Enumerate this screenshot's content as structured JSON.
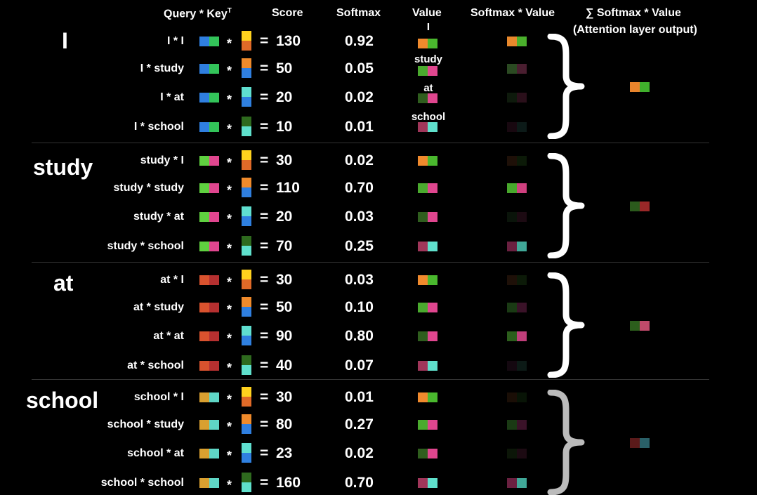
{
  "headers": {
    "query_key": "Query * Key",
    "query_key_sup": "T",
    "score": "Score",
    "softmax": "Softmax",
    "value": "Value",
    "softmax_value": "Softmax * Value",
    "sum_symbol": "∑",
    "sum_label": "Softmax * Value",
    "sum_sublabel": "(Attention layer output)"
  },
  "symbols": {
    "times": "*",
    "equals": "="
  },
  "value_labels": [
    "I",
    "study",
    "at",
    "school"
  ],
  "groups": [
    {
      "word": "I",
      "rows": [
        {
          "pair": "I * I",
          "score": "130",
          "softmax": "0.92"
        },
        {
          "pair": "I * study",
          "score": "50",
          "softmax": "0.05"
        },
        {
          "pair": "I * at",
          "score": "20",
          "softmax": "0.02"
        },
        {
          "pair": "I * school",
          "score": "10",
          "softmax": "0.01"
        }
      ]
    },
    {
      "word": "study",
      "rows": [
        {
          "pair": "study * I",
          "score": "30",
          "softmax": "0.02"
        },
        {
          "pair": "study * study",
          "score": "110",
          "softmax": "0.70"
        },
        {
          "pair": "study * at",
          "score": "20",
          "softmax": "0.03"
        },
        {
          "pair": "study * school",
          "score": "70",
          "softmax": "0.25"
        }
      ]
    },
    {
      "word": "at",
      "rows": [
        {
          "pair": "at * I",
          "score": "30",
          "softmax": "0.03"
        },
        {
          "pair": "at * study",
          "score": "50",
          "softmax": "0.10"
        },
        {
          "pair": "at * at",
          "score": "90",
          "softmax": "0.80"
        },
        {
          "pair": "at * school",
          "score": "40",
          "softmax": "0.07"
        }
      ]
    },
    {
      "word": "school",
      "rows": [
        {
          "pair": "school * I",
          "score": "30",
          "softmax": "0.01"
        },
        {
          "pair": "school * study",
          "score": "80",
          "softmax": "0.27"
        },
        {
          "pair": "school * at",
          "score": "23",
          "softmax": "0.02"
        },
        {
          "pair": "school * school",
          "score": "160",
          "softmax": "0.70"
        }
      ]
    }
  ],
  "colors": {
    "query": [
      [
        "#2f7fe0",
        "#33c45a"
      ],
      [
        "#5fd040",
        "#e0468f"
      ],
      [
        "#d9522e",
        "#b53030"
      ],
      [
        "#d9a030",
        "#5fd6c6"
      ]
    ],
    "key": [
      [
        "#ffd21e",
        "#e06a28"
      ],
      [
        "#ef8a2b",
        "#2f7fe0"
      ],
      [
        "#5fdfd0",
        "#2f80e0"
      ],
      [
        "#2e6a1e",
        "#5fe0cc"
      ]
    ],
    "value": [
      [
        "#f08a2d",
        "#4ab82e"
      ],
      [
        "#4aaa2e",
        "#e0468f"
      ],
      [
        "#2f5e1e",
        "#e0468f"
      ],
      [
        "#a0365a",
        "#5fe0cc"
      ]
    ],
    "weighted": [
      [
        [
          "#e8882c",
          "#4ab02c"
        ],
        [
          "#2b4a22",
          "#4a1e30"
        ],
        [
          "#0e1a0c",
          "#2a0f1a"
        ],
        [
          "#180810",
          "#0c1a18"
        ]
      ],
      [
        [
          "#1e1008",
          "#0c1a08"
        ],
        [
          "#48a82c",
          "#d0407f"
        ],
        [
          "#0a140a",
          "#1c0a12"
        ],
        [
          "#6a2040",
          "#40a898"
        ]
      ],
      [
        [
          "#1e1008",
          "#0c1a08"
        ],
        [
          "#1a3a14",
          "#3a1228"
        ],
        [
          "#2c5e1c",
          "#c03e7a"
        ],
        [
          "#140810",
          "#0c1a16"
        ]
      ],
      [
        [
          "#1a0e06",
          "#081406"
        ],
        [
          "#1a3a14",
          "#3a1228"
        ],
        [
          "#0c1608",
          "#1c0a12"
        ],
        [
          "#6a2040",
          "#40a898"
        ]
      ]
    ],
    "output": [
      [
        "#e8842c",
        "#40b02c"
      ],
      [
        "#2b5a1c",
        "#9a2828"
      ],
      [
        "#2c5e1c",
        "#c04a6a"
      ],
      [
        "#5a1a1a",
        "#2a6068"
      ]
    ],
    "brace": [
      "#ffffff",
      "#ffffff",
      "#ffffff",
      "#bbbbbb"
    ]
  }
}
